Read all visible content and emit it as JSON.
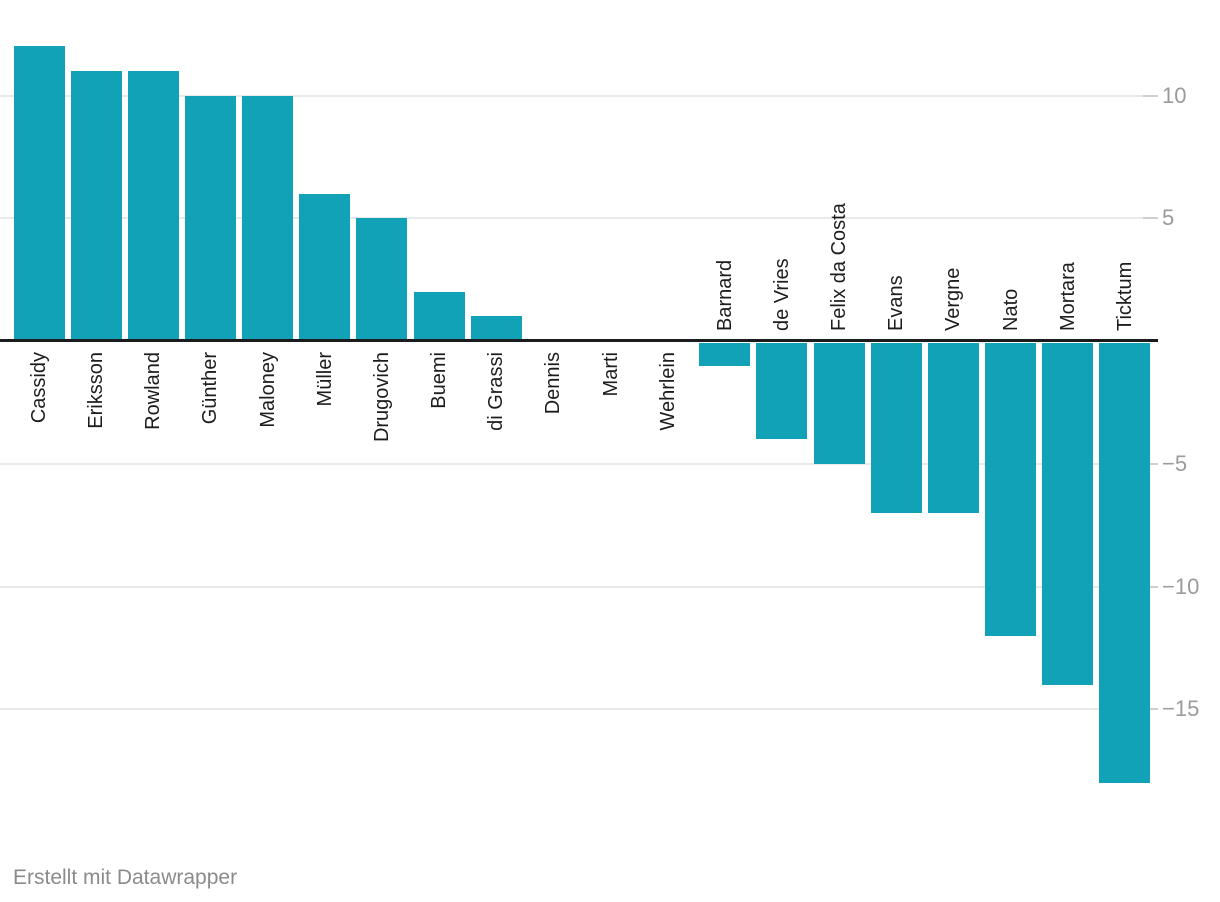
{
  "chart_data": {
    "type": "bar",
    "categories": [
      "Cassidy",
      "Eriksson",
      "Rowland",
      "Günther",
      "Maloney",
      "Müller",
      "Drugovich",
      "Buemi",
      "di Grassi",
      "Dennis",
      "Marti",
      "Wehrlein",
      "Barnard",
      "de Vries",
      "Felix da Costa",
      "Evans",
      "Vergne",
      "Nato",
      "Mortara",
      "Ticktum"
    ],
    "values": [
      12,
      11,
      11,
      10,
      10,
      6,
      5,
      2,
      1,
      0,
      0,
      0,
      -1,
      -4,
      -5,
      -7,
      -7,
      -12,
      -14,
      -18
    ],
    "title": "",
    "xlabel": "",
    "ylabel": "",
    "y_ticks": [
      10,
      5,
      -5,
      -10,
      -15
    ],
    "ylim": [
      -18.5,
      12.5
    ],
    "grid": true,
    "legend": false,
    "colors": {
      "bar": "#12a2b7",
      "baseline": "#1a1c1e",
      "gridline": "#e9e9e9",
      "tick_dash": "#cfcfcf",
      "tick_label": "#9b9b9b",
      "bar_label": "#1d1d1d"
    }
  },
  "footer": {
    "attribution": "Erstellt mit Datawrapper"
  }
}
